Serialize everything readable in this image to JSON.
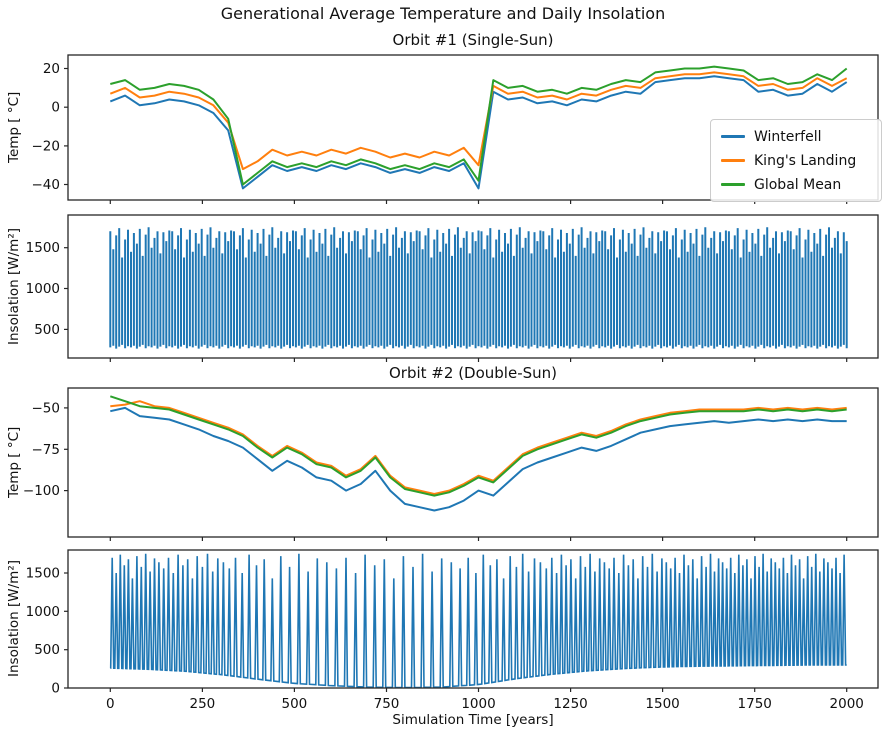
{
  "figure": {
    "title": "Generational Average Temperature and Daily Insolation",
    "xlabel": "Simulation Time [years]",
    "background_color": "#ffffff",
    "line_color": "#1f77b4"
  },
  "legend": {
    "entries": [
      {
        "label": "Winterfell",
        "color": "#1f77b4"
      },
      {
        "label": "King's Landing",
        "color": "#ff7f0e"
      },
      {
        "label": "Global Mean",
        "color": "#2ca02c"
      }
    ]
  },
  "chart_data": [
    {
      "id": "orbit1-temp",
      "type": "line",
      "title": "Orbit #1 (Single-Sun)",
      "ylabel": "Temp [ °C]",
      "xlim": [
        -115,
        2085
      ],
      "ylim": [
        -48,
        27
      ],
      "xticks": [
        0,
        250,
        500,
        750,
        1000,
        1250,
        1500,
        1750,
        2000
      ],
      "yticks": [
        20,
        0,
        -20,
        -40
      ],
      "show_xticklabels": false,
      "x_start": 0,
      "x_step": 40,
      "series": [
        {
          "name": "Winterfell",
          "color": "#1f77b4",
          "values": [
            3,
            6,
            1,
            2,
            4,
            3,
            1,
            -3,
            -12,
            -42,
            -36,
            -30,
            -33,
            -31,
            -33,
            -30,
            -32,
            -29,
            -31,
            -34,
            -32,
            -34,
            -31,
            -33,
            -29,
            -42,
            8,
            4,
            5,
            2,
            3,
            1,
            4,
            3,
            6,
            8,
            7,
            13,
            14,
            15,
            15,
            16,
            15,
            14,
            8,
            9,
            6,
            7,
            12,
            8,
            13
          ]
        },
        {
          "name": "King's Landing",
          "color": "#ff7f0e",
          "values": [
            7,
            10,
            5,
            6,
            8,
            7,
            5,
            1,
            -8,
            -32,
            -28,
            -22,
            -25,
            -23,
            -25,
            -22,
            -24,
            -21,
            -23,
            -26,
            -24,
            -26,
            -23,
            -25,
            -21,
            -30,
            11,
            7,
            8,
            5,
            6,
            4,
            7,
            6,
            9,
            11,
            10,
            15,
            16,
            17,
            17,
            18,
            17,
            16,
            11,
            12,
            9,
            10,
            15,
            11,
            15
          ]
        },
        {
          "name": "Global Mean",
          "color": "#2ca02c",
          "values": [
            12,
            14,
            9,
            10,
            12,
            11,
            9,
            4,
            -6,
            -40,
            -34,
            -28,
            -31,
            -29,
            -31,
            -28,
            -30,
            -27,
            -29,
            -32,
            -30,
            -32,
            -29,
            -31,
            -27,
            -38,
            14,
            10,
            11,
            8,
            9,
            7,
            10,
            9,
            12,
            14,
            13,
            18,
            19,
            20,
            20,
            21,
            20,
            19,
            14,
            15,
            12,
            13,
            17,
            14,
            20
          ]
        }
      ]
    },
    {
      "id": "orbit1-insolation",
      "type": "comb",
      "title": "",
      "ylabel": "Insolation [W/m²]",
      "xlim": [
        -115,
        2085
      ],
      "ylim": [
        150,
        1900
      ],
      "xticks": [
        0,
        250,
        500,
        750,
        1000,
        1250,
        1500,
        1750,
        2000
      ],
      "yticks": [
        1500,
        1000,
        500
      ],
      "show_xticklabels": false,
      "color": "#1f77b4",
      "xrange": [
        0,
        2000
      ],
      "spacing": 8,
      "tops_cycle": [
        1700,
        1480,
        1650,
        1740,
        1380,
        1600,
        1720,
        1450,
        1680,
        1550,
        1730,
        1400,
        1660,
        1750,
        1500,
        1620,
        1700,
        1430,
        1690,
        1580,
        1710
      ],
      "bottoms_cycle": [
        280,
        300,
        265,
        290,
        310,
        270,
        295
      ]
    },
    {
      "id": "orbit2-temp",
      "type": "line",
      "title": "Orbit #2 (Double-Sun)",
      "ylabel": "Temp [ °C]",
      "xlim": [
        -115,
        2085
      ],
      "ylim": [
        -128,
        -38
      ],
      "xticks": [
        0,
        250,
        500,
        750,
        1000,
        1250,
        1500,
        1750,
        2000
      ],
      "yticks": [
        -50,
        -75,
        -100
      ],
      "show_xticklabels": false,
      "x_start": 0,
      "x_step": 40,
      "series": [
        {
          "name": "Winterfell",
          "color": "#1f77b4",
          "values": [
            -52,
            -50,
            -55,
            -56,
            -57,
            -60,
            -63,
            -67,
            -70,
            -74,
            -81,
            -88,
            -82,
            -86,
            -92,
            -94,
            -100,
            -96,
            -88,
            -100,
            -108,
            -110,
            -112,
            -110,
            -106,
            -100,
            -103,
            -95,
            -87,
            -83,
            -80,
            -77,
            -74,
            -76,
            -73,
            -69,
            -65,
            -63,
            -61,
            -60,
            -59,
            -58,
            -59,
            -58,
            -57,
            -58,
            -57,
            -58,
            -57,
            -58,
            -58
          ]
        },
        {
          "name": "King's Landing",
          "color": "#ff7f0e",
          "values": [
            -49,
            -48,
            -46,
            -49,
            -50,
            -53,
            -56,
            -59,
            -62,
            -66,
            -73,
            -79,
            -73,
            -77,
            -83,
            -85,
            -91,
            -87,
            -79,
            -91,
            -98,
            -100,
            -102,
            -100,
            -96,
            -91,
            -94,
            -86,
            -78,
            -74,
            -71,
            -68,
            -65,
            -67,
            -64,
            -60,
            -57,
            -55,
            -53,
            -52,
            -51,
            -51,
            -51,
            -51,
            -50,
            -51,
            -50,
            -51,
            -50,
            -51,
            -50
          ]
        },
        {
          "name": "Global Mean",
          "color": "#2ca02c",
          "values": [
            -43,
            -46,
            -49,
            -50,
            -51,
            -54,
            -57,
            -60,
            -63,
            -67,
            -74,
            -80,
            -74,
            -78,
            -84,
            -86,
            -92,
            -88,
            -80,
            -92,
            -99,
            -101,
            -103,
            -101,
            -97,
            -92,
            -95,
            -87,
            -79,
            -75,
            -72,
            -69,
            -66,
            -68,
            -65,
            -61,
            -58,
            -56,
            -54,
            -53,
            -52,
            -52,
            -52,
            -52,
            -51,
            -52,
            -51,
            -52,
            -51,
            -52,
            -51
          ]
        }
      ]
    },
    {
      "id": "orbit2-insolation",
      "type": "spikes",
      "title": "",
      "ylabel": "Insolation [W/m²]",
      "xlim": [
        -115,
        2085
      ],
      "ylim": [
        0,
        1800
      ],
      "xticks": [
        0,
        250,
        500,
        750,
        1000,
        1250,
        1500,
        1750,
        2000
      ],
      "yticks": [
        1500,
        1000,
        500,
        0
      ],
      "show_xticklabels": true,
      "color": "#1f77b4",
      "spike_halfwidth": 4,
      "baseline": [
        [
          0,
          260
        ],
        [
          100,
          245
        ],
        [
          200,
          220
        ],
        [
          300,
          175
        ],
        [
          400,
          115
        ],
        [
          500,
          60
        ],
        [
          600,
          30
        ],
        [
          700,
          12
        ],
        [
          800,
          5
        ],
        [
          900,
          12
        ],
        [
          1000,
          45
        ],
        [
          1100,
          120
        ],
        [
          1200,
          180
        ],
        [
          1300,
          225
        ],
        [
          1400,
          255
        ],
        [
          1500,
          275
        ],
        [
          1600,
          285
        ],
        [
          1700,
          290
        ],
        [
          1800,
          295
        ],
        [
          1900,
          300
        ],
        [
          2000,
          300
        ]
      ],
      "spike_x": [
        5,
        16,
        27,
        38,
        49,
        60,
        72,
        84,
        96,
        108,
        120,
        132,
        145,
        158,
        171,
        184,
        197,
        210,
        223,
        236,
        250,
        264,
        278,
        292,
        307,
        323,
        340,
        358,
        377,
        397,
        418,
        440,
        463,
        487,
        512,
        537,
        562,
        588,
        614,
        640,
        666,
        692,
        718,
        744,
        770,
        796,
        822,
        848,
        874,
        900,
        926,
        950,
        972,
        993,
        1013,
        1032,
        1050,
        1068,
        1086,
        1103,
        1120,
        1136,
        1152,
        1168,
        1184,
        1199,
        1212,
        1225,
        1238,
        1251,
        1264,
        1277,
        1290,
        1303,
        1316,
        1329,
        1342,
        1355,
        1368,
        1381,
        1394,
        1407,
        1420,
        1433,
        1446,
        1459,
        1472,
        1485,
        1498,
        1510,
        1522,
        1534,
        1546,
        1558,
        1570,
        1582,
        1594,
        1606,
        1618,
        1630,
        1641,
        1652,
        1663,
        1674,
        1685,
        1696,
        1707,
        1718,
        1729,
        1740,
        1751,
        1762,
        1773,
        1784,
        1795,
        1806,
        1817,
        1828,
        1839,
        1850,
        1861,
        1872,
        1883,
        1894,
        1905,
        1916,
        1927,
        1938,
        1949,
        1960,
        1971,
        1982,
        1993
      ],
      "spike_heights_cycle": [
        1700,
        1500,
        1740,
        1600,
        1680,
        1430,
        1720,
        1580,
        1750,
        1520,
        1690,
        1640,
        1560
      ]
    }
  ]
}
